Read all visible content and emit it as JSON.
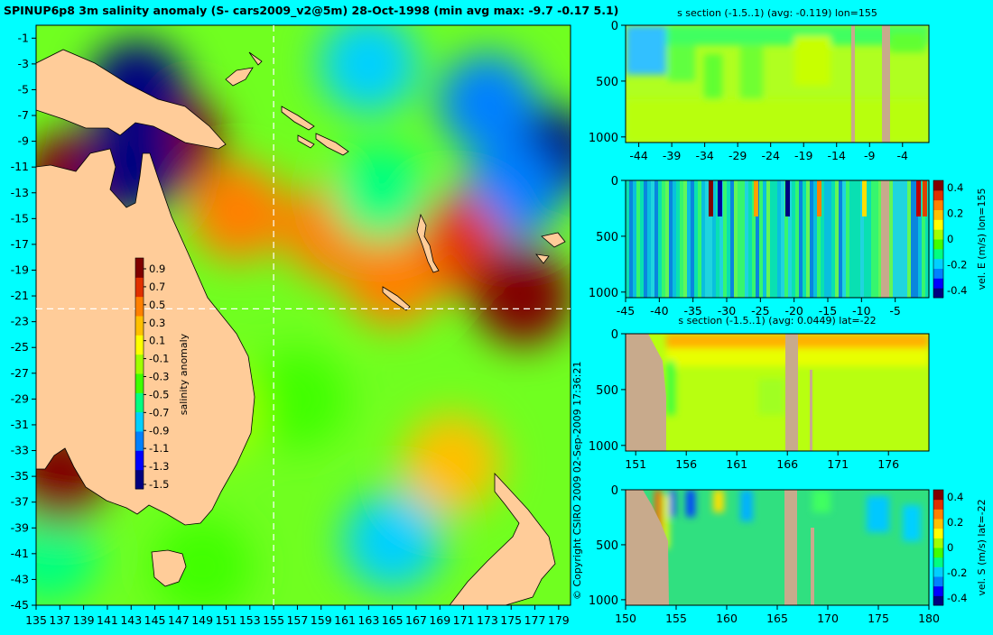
{
  "main_title": "SPINUP6p8 3m salinity anomaly (S- cars2009_v2@5m) 28-Oct-1998 (min avg max: -9.7 -0.17 5.1)",
  "copyright": "© Copyright CSIRO 2009   02-Sep-2009 17:36:21",
  "colors": {
    "background": "#00ffff",
    "land": "#ffcc99",
    "section_land": "#c8aa8c",
    "colormap": [
      "#000080",
      "#0000ff",
      "#0080ff",
      "#00d0ff",
      "#00ff80",
      "#40ff00",
      "#a0ff00",
      "#ffff00",
      "#ffc000",
      "#ff8000",
      "#e03000",
      "#800000"
    ]
  },
  "chart_data": [
    {
      "type": "heatmap",
      "name": "salinity-map",
      "title": "SPINUP6p8 3m salinity anomaly (S- cars2009_v2@5m) 28-Oct-1998",
      "min_avg_max": [
        -9.7,
        -0.17,
        5.1
      ],
      "xlim": [
        135,
        180
      ],
      "ylim": [
        -45,
        0
      ],
      "xticks": [
        135,
        137,
        139,
        141,
        143,
        145,
        147,
        149,
        151,
        153,
        155,
        157,
        159,
        161,
        163,
        165,
        167,
        169,
        171,
        173,
        175,
        177,
        179
      ],
      "yticks": [
        -1,
        -3,
        -5,
        -7,
        -9,
        -11,
        -13,
        -15,
        -17,
        -19,
        -21,
        -23,
        -25,
        -27,
        -29,
        -31,
        -33,
        -35,
        -37,
        -39,
        -41,
        -43,
        -45
      ],
      "crosshair": {
        "lon": 155,
        "lat": -22
      },
      "colorbar": {
        "label": "salinity anomaly",
        "range": [
          -1.6,
          1.0
        ],
        "ticks": [
          "0.9",
          "0.7",
          "0.5",
          "0.3",
          "0.1",
          "-0.1",
          "-0.3",
          "-0.5",
          "-0.7",
          "-0.9",
          "-1.1",
          "-1.3",
          "-1.5"
        ]
      },
      "salinity_regions": [
        {
          "lon": 138,
          "lat": -12,
          "value": 0.8
        },
        {
          "lon": 146.5,
          "lat": -9,
          "value": 1.0
        },
        {
          "lon": 143,
          "lat": -11,
          "value": -1.5
        },
        {
          "lon": 143.5,
          "lat": -5,
          "value": -1.5
        },
        {
          "lon": 178,
          "lat": -10,
          "value": -1.6
        },
        {
          "lon": 173,
          "lat": -6,
          "value": -1.0
        },
        {
          "lon": 175,
          "lat": -13,
          "value": -1.0
        },
        {
          "lon": 163,
          "lat": -3,
          "value": -0.8
        },
        {
          "lon": 152,
          "lat": -14.5,
          "value": 0.5
        },
        {
          "lon": 160,
          "lat": -16,
          "value": 0.5
        },
        {
          "lon": 170,
          "lat": -17,
          "value": 0.7
        },
        {
          "lon": 176,
          "lat": -21,
          "value": 0.8
        },
        {
          "lon": 165,
          "lat": -19.5,
          "value": 0.4
        },
        {
          "lon": 164,
          "lat": -13,
          "value": -0.6
        },
        {
          "lon": 165,
          "lat": -40,
          "value": -0.8
        },
        {
          "lon": 170,
          "lat": -34,
          "value": 0.2
        },
        {
          "lon": 136,
          "lat": -41,
          "value": -0.7
        },
        {
          "lon": 157,
          "lat": -29,
          "value": -0.4
        },
        {
          "lon": 150,
          "lat": -30,
          "value": -0.1
        },
        {
          "lon": 149,
          "lat": -42,
          "value": -0.5
        },
        {
          "lon": 137,
          "lat": -35,
          "value": 0.8
        }
      ]
    },
    {
      "type": "heatmap",
      "name": "s-section-lon",
      "title": "s section (-1.5..1) (avg: -0.119) lon=155",
      "xlim": [
        -46,
        0
      ],
      "ylim": [
        1050,
        0
      ],
      "xticks": [
        "-44",
        "-39",
        "-34",
        "-29",
        "-24",
        "-19",
        "-14",
        "-9",
        "-4"
      ],
      "yticks": [
        "0",
        "500",
        "1000"
      ]
    },
    {
      "type": "heatmap",
      "name": "vel-e-section",
      "title": "",
      "side_label": "vel. E (m/s) lon=155",
      "xlim": [
        -45,
        0
      ],
      "ylim": [
        1050,
        0
      ],
      "xticks": [
        "-45",
        "-40",
        "-35",
        "-30",
        "-25",
        "-20",
        "-15",
        "-10",
        "-5"
      ],
      "yticks": [
        "0",
        "500",
        "1000"
      ],
      "colorbar_ticks": [
        "0.4",
        "0.2",
        "0",
        "-0.2",
        "-0.4"
      ]
    },
    {
      "type": "heatmap",
      "name": "s-section-lat",
      "title": "s section (-1.5..1) (avg: 0.0449) lat=-22",
      "xlim": [
        150,
        180
      ],
      "ylim": [
        1050,
        0
      ],
      "xticks": [
        "151",
        "156",
        "161",
        "166",
        "171",
        "176"
      ],
      "yticks": [
        "0",
        "500",
        "1000"
      ]
    },
    {
      "type": "heatmap",
      "name": "vel-s-section",
      "title": "",
      "side_label": "vel. S (m/s) lat=-22",
      "xlim": [
        150,
        180
      ],
      "ylim": [
        1050,
        0
      ],
      "xticks": [
        "150",
        "155",
        "160",
        "165",
        "170",
        "175",
        "180"
      ],
      "yticks": [
        "0",
        "500",
        "1000"
      ],
      "colorbar_ticks": [
        "0.4",
        "0.2",
        "0",
        "-0.2",
        "-0.4"
      ]
    }
  ]
}
